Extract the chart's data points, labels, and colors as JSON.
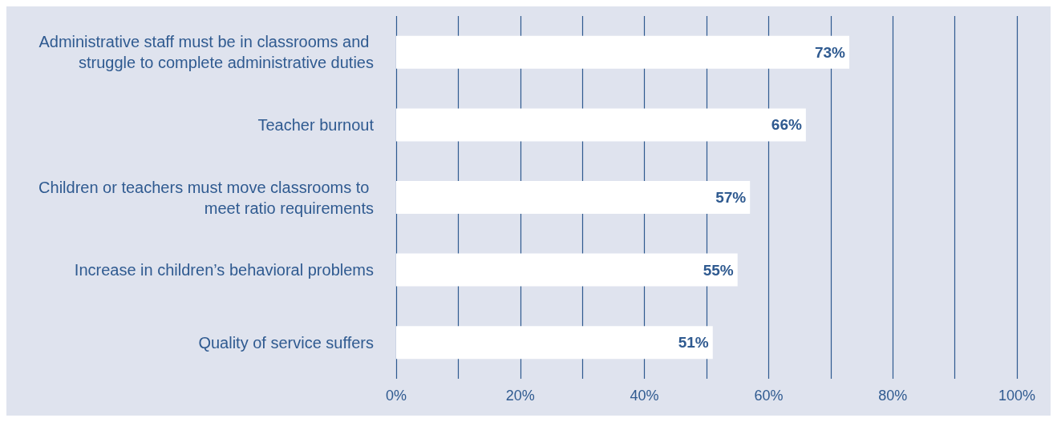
{
  "chart_data": {
    "type": "bar",
    "orientation": "horizontal",
    "categories": [
      "Administrative staff must be in classrooms and struggle to complete administrative duties",
      "Teacher burnout",
      "Children or teachers must move classrooms to meet ratio requirements",
      "Increase in children’s behavioral problems",
      "Quality of service suffers"
    ],
    "values": [
      73,
      66,
      57,
      55,
      51
    ],
    "color": "#ffffff",
    "value_labels": [
      "73%",
      "66%",
      "57%",
      "55%",
      "51%"
    ],
    "xlim": [
      0,
      100
    ],
    "xticks": [
      {
        "value": 0,
        "label": "0%"
      },
      {
        "value": 10,
        "label": null
      },
      {
        "value": 20,
        "label": "20%"
      },
      {
        "value": 30,
        "label": null
      },
      {
        "value": 40,
        "label": "40%"
      },
      {
        "value": 50,
        "label": null
      },
      {
        "value": 60,
        "label": "60%"
      },
      {
        "value": 70,
        "label": null
      },
      {
        "value": 80,
        "label": "80%"
      },
      {
        "value": 90,
        "label": null
      },
      {
        "value": 100,
        "label": "100%"
      }
    ],
    "grid": "x"
  }
}
